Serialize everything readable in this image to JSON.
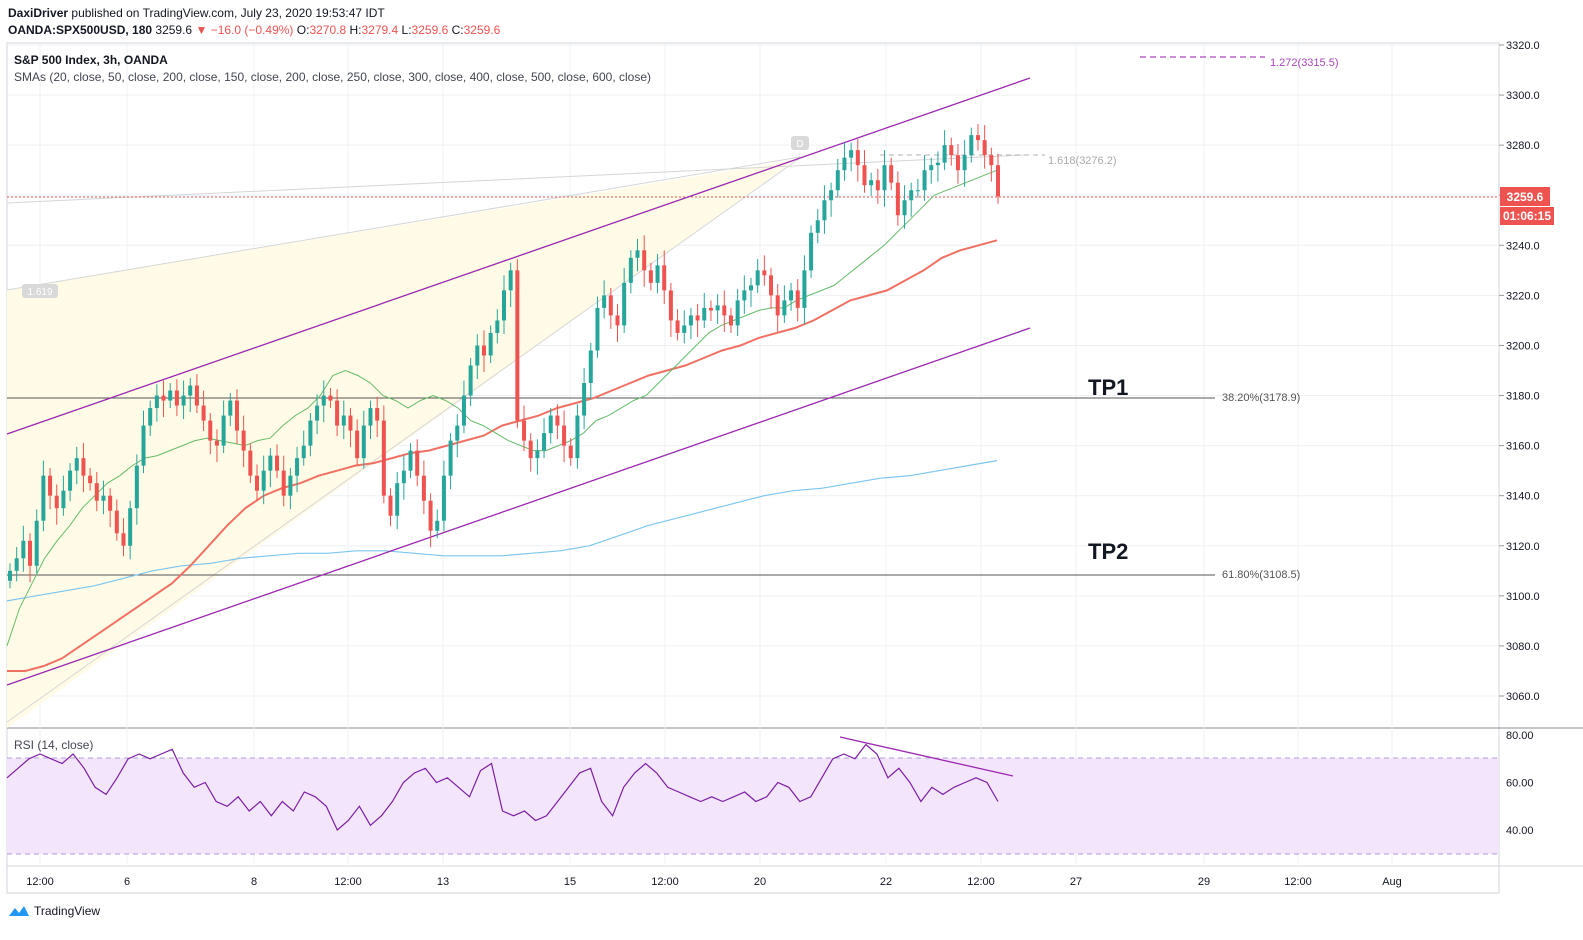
{
  "header": {
    "author": "DaxiDriver",
    "published_text": "published on TradingView.com, July 23, 2020 19:53:47 IDT",
    "symbol": "OANDA:SPX500USD, 180",
    "last_price": "3259.6",
    "change": "−16.0 (−0.49%)",
    "o_label": "O:",
    "o_value": "3270.8",
    "h_label": "H:",
    "h_value": "3279.4",
    "l_label": "L:",
    "l_value": "3259.6",
    "c_label": "C:",
    "c_value": "3259.6"
  },
  "legend": {
    "title": "S&P 500 Index, 3h, OANDA",
    "smas": "SMAs (20, close, 50, close, 200, close, 150, close, 200, close, 250, close, 300, close, 400, close, 500, close, 600, close)",
    "rsi": "RSI (14, close)"
  },
  "footer": {
    "brand": "TradingView"
  },
  "annotations": {
    "tp1": "TP1",
    "tp2": "TP2",
    "fib_382": "38.20%(3178.9)",
    "fib_618": "61.80%(3108.5)",
    "fib_1618": "1.618(3276.2)",
    "fib_1272": "1.272(3315.5)",
    "fib_1619": "1.619",
    "marker_d": "D"
  },
  "price_axis": {
    "current_price": "3259.6",
    "countdown": "01:06:15"
  },
  "colors": {
    "up": "#26a69a",
    "down": "#ef5350",
    "sma_green": "#66bb6a",
    "sma_red": "#f07164",
    "sma_blue": "#7ec6ef",
    "channel": "#9c27b0",
    "rsi_line": "#7b1fa2",
    "rsi_fill": "#f3e5fc"
  },
  "chart_data": {
    "type": "candlestick",
    "title": "S&P 500 Index, 3h, OANDA",
    "y_ticks": [
      3320,
      3300,
      3280,
      3260,
      3240,
      3220,
      3200,
      3180,
      3160,
      3140,
      3120,
      3100,
      3080,
      3060
    ],
    "y_tick_labels": [
      "3320.0",
      "3300.0",
      "3280.0",
      "3260.0",
      "3240.0",
      "3220.0",
      "3200.0",
      "3180.0",
      "3160.0",
      "3140.0",
      "3120.0",
      "3100.0",
      "3080.0",
      "3060.0"
    ],
    "ylim": [
      3047,
      3322
    ],
    "x_tick_labels": [
      "12:00",
      "6",
      "8",
      "12:00",
      "13",
      "15",
      "12:00",
      "20",
      "22",
      "12:00",
      "27",
      "29",
      "12:00",
      "Aug"
    ],
    "closes": [
      3110,
      3115,
      3122,
      3112,
      3130,
      3148,
      3140,
      3135,
      3142,
      3150,
      3155,
      3148,
      3145,
      3138,
      3140,
      3134,
      3125,
      3120,
      3135,
      3152,
      3168,
      3175,
      3180,
      3178,
      3182,
      3176,
      3180,
      3184,
      3176,
      3170,
      3162,
      3160,
      3172,
      3178,
      3166,
      3158,
      3148,
      3142,
      3150,
      3156,
      3150,
      3140,
      3148,
      3155,
      3160,
      3170,
      3176,
      3180,
      3178,
      3168,
      3172,
      3166,
      3155,
      3168,
      3175,
      3170,
      3140,
      3132,
      3145,
      3150,
      3158,
      3148,
      3138,
      3126,
      3130,
      3148,
      3162,
      3168,
      3180,
      3192,
      3200,
      3196,
      3205,
      3210,
      3222,
      3230,
      3170,
      3162,
      3155,
      3158,
      3165,
      3172,
      3168,
      3160,
      3155,
      3172,
      3185,
      3198,
      3215,
      3220,
      3212,
      3208,
      3225,
      3235,
      3238,
      3230,
      3225,
      3232,
      3222,
      3210,
      3205,
      3208,
      3212,
      3210,
      3215,
      3214,
      3216,
      3212,
      3208,
      3218,
      3222,
      3224,
      3230,
      3228,
      3220,
      3212,
      3218,
      3222,
      3215,
      3230,
      3245,
      3250,
      3258,
      3262,
      3270,
      3275,
      3278,
      3272,
      3264,
      3266,
      3262,
      3272,
      3265,
      3252,
      3258,
      3262,
      3262,
      3270,
      3272,
      3273,
      3280,
      3276,
      3270,
      3276,
      3284,
      3282,
      3276,
      3272,
      3259.6
    ],
    "sma_short": [
      3080,
      3095,
      3105,
      3115,
      3122,
      3128,
      3135,
      3140,
      3145,
      3148,
      3152,
      3155,
      3156,
      3158,
      3160,
      3162,
      3163,
      3162,
      3161,
      3160,
      3162,
      3163,
      3168,
      3172,
      3175,
      3180,
      3188,
      3190,
      3188,
      3185,
      3180,
      3178,
      3175,
      3178,
      3180,
      3178,
      3175,
      3170,
      3168,
      3165,
      3162,
      3160,
      3158,
      3158,
      3160,
      3162,
      3165,
      3170,
      3172,
      3175,
      3178,
      3180,
      3185,
      3190,
      3195,
      3200,
      3205,
      3208,
      3210,
      3212,
      3214,
      3215,
      3215,
      3218,
      3220,
      3222,
      3224,
      3228,
      3232,
      3236,
      3240,
      3245,
      3250,
      3255,
      3260,
      3262,
      3264,
      3266,
      3268,
      3270
    ],
    "sma_mid": [
      3070,
      3070,
      3072,
      3075,
      3080,
      3085,
      3090,
      3095,
      3100,
      3105,
      3112,
      3120,
      3128,
      3135,
      3140,
      3143,
      3145,
      3148,
      3150,
      3152,
      3153,
      3155,
      3157,
      3158,
      3160,
      3162,
      3164,
      3168,
      3170,
      3172,
      3175,
      3177,
      3179,
      3182,
      3185,
      3188,
      3190,
      3192,
      3195,
      3198,
      3200,
      3203,
      3205,
      3207,
      3210,
      3214,
      3218,
      3220,
      3222,
      3226,
      3230,
      3235,
      3238,
      3240,
      3242
    ],
    "sma_long": [
      3098,
      3100,
      3102,
      3104,
      3107,
      3110,
      3112,
      3113,
      3115,
      3116,
      3117,
      3117,
      3118,
      3118,
      3117,
      3116,
      3116,
      3116,
      3117,
      3118,
      3120,
      3124,
      3128,
      3131,
      3134,
      3137,
      3140,
      3142,
      3143,
      3145,
      3147,
      3148,
      3150,
      3152,
      3154
    ],
    "rsi": [
      62,
      66,
      70,
      72,
      70,
      68,
      72,
      66,
      58,
      55,
      62,
      70,
      72,
      70,
      72,
      74,
      64,
      58,
      60,
      52,
      50,
      54,
      48,
      52,
      46,
      52,
      48,
      56,
      54,
      50,
      40,
      44,
      50,
      42,
      46,
      52,
      60,
      64,
      66,
      60,
      62,
      58,
      54,
      65,
      68,
      48,
      46,
      48,
      44,
      46,
      52,
      58,
      64,
      66,
      52,
      46,
      58,
      64,
      68,
      64,
      58,
      56,
      54,
      52,
      54,
      52,
      54,
      56,
      52,
      54,
      60,
      58,
      52,
      54,
      62,
      70,
      72,
      70,
      76,
      72,
      62,
      66,
      60,
      52,
      58,
      55,
      58,
      60,
      62,
      60,
      52
    ],
    "rsi_ylim": [
      25,
      82
    ],
    "rsi_levels": [
      30,
      70
    ],
    "rsi_ticks": [
      "80.00",
      "60.00",
      "40.00"
    ]
  }
}
